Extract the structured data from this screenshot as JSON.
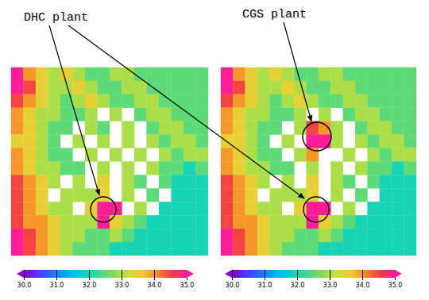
{
  "chart_data": [
    {
      "type": "heatmap",
      "annotations": [
        "DHC plant"
      ],
      "tick_labels": false,
      "color_range": [
        30,
        35
      ],
      "color_ticks": [
        30,
        31,
        32,
        33,
        34,
        35
      ],
      "cells": [
        [
          35,
          34,
          33.5,
          33,
          33.5,
          33,
          32.5,
          32.5,
          33,
          33,
          32.5,
          32.5,
          32.5,
          32.5,
          32.5,
          32.5
        ],
        [
          35,
          34.5,
          33.5,
          33,
          33,
          33.5,
          33,
          32.5,
          32.5,
          33,
          33,
          32.5,
          32.5,
          32.5,
          32.5,
          32.5
        ],
        [
          34.5,
          34,
          33.5,
          33,
          32.5,
          33,
          33.5,
          33,
          32.5,
          32.5,
          33,
          33,
          32.5,
          32.5,
          32.5,
          32.5
        ],
        [
          34,
          33.5,
          33,
          33,
          32.5,
          32.5,
          33,
          null,
          33,
          null,
          32.5,
          33,
          33,
          32.5,
          32.5,
          32.5
        ],
        [
          34,
          33.5,
          33,
          32.5,
          32.5,
          null,
          33,
          32.5,
          null,
          33,
          null,
          32.5,
          33,
          33,
          32.5,
          32.5
        ],
        [
          33.5,
          33.5,
          33,
          32.5,
          null,
          33,
          null,
          33,
          null,
          33,
          null,
          33,
          32.5,
          33,
          33,
          32.5
        ],
        [
          34,
          33.5,
          33,
          32.5,
          32.5,
          null,
          33,
          null,
          33,
          null,
          33,
          null,
          33,
          32.5,
          33,
          33
        ],
        [
          34,
          33.5,
          33,
          33,
          32.5,
          32.5,
          null,
          33,
          null,
          33,
          null,
          33,
          32.5,
          32.5,
          32,
          32.5
        ],
        [
          34.5,
          34,
          33.5,
          33,
          null,
          33,
          null,
          33.5,
          null,
          33,
          32.5,
          null,
          32.5,
          32,
          32,
          32
        ],
        [
          34.5,
          34,
          33.5,
          null,
          33,
          33,
          33,
          33.5,
          null,
          33,
          null,
          32.5,
          null,
          32,
          32,
          32
        ],
        [
          34.5,
          34,
          33.5,
          33,
          33,
          null,
          33.5,
          35,
          35,
          null,
          33,
          null,
          32,
          32,
          32,
          32
        ],
        [
          34.5,
          34,
          34,
          33.5,
          33,
          33,
          33,
          35,
          33.5,
          33,
          32.5,
          32,
          32,
          32,
          32,
          32
        ],
        [
          35,
          34.5,
          34,
          33.5,
          33,
          33,
          32.5,
          32.5,
          33,
          32.5,
          32,
          32,
          32,
          32,
          32,
          32
        ],
        [
          35,
          34.5,
          34,
          33.5,
          33,
          32.5,
          32.5,
          32.5,
          32,
          32,
          32,
          32,
          32,
          32,
          32,
          32
        ]
      ]
    },
    {
      "type": "heatmap",
      "annotations": [
        "CGS plant"
      ],
      "tick_labels": false,
      "color_range": [
        30,
        35
      ],
      "color_ticks": [
        30,
        31,
        32,
        33,
        34,
        35
      ],
      "cells": [
        [
          35,
          34,
          33.5,
          33,
          33.5,
          33,
          32.5,
          32.5,
          33,
          33,
          32.5,
          32.5,
          32.5,
          32.5,
          32.5,
          32.5
        ],
        [
          35,
          34.5,
          33.5,
          33,
          33,
          33.5,
          33,
          32.5,
          32.5,
          33,
          33,
          32.5,
          32.5,
          32.5,
          32.5,
          32.5
        ],
        [
          34.5,
          34,
          33.5,
          33,
          32.5,
          33,
          33.5,
          33,
          32.5,
          32.5,
          33,
          33,
          32.5,
          32.5,
          32.5,
          32.5
        ],
        [
          34,
          33.5,
          33,
          33,
          32.5,
          32.5,
          33,
          null,
          33,
          null,
          32.5,
          33,
          33,
          32.5,
          32.5,
          32.5
        ],
        [
          34,
          33.5,
          33,
          32.5,
          32.5,
          null,
          33,
          34.5,
          34,
          33,
          null,
          32.5,
          33,
          33,
          32.5,
          32.5
        ],
        [
          33.5,
          33.5,
          33,
          32.5,
          null,
          33,
          null,
          35,
          35,
          33,
          null,
          33,
          32.5,
          33,
          33,
          32.5
        ],
        [
          34,
          33.5,
          33,
          32.5,
          32.5,
          null,
          33,
          34,
          null,
          null,
          33,
          null,
          33,
          32.5,
          33,
          33
        ],
        [
          34,
          33.5,
          33,
          33,
          32.5,
          32.5,
          null,
          33,
          null,
          33,
          null,
          33,
          32.5,
          32.5,
          32,
          32.5
        ],
        [
          34.5,
          34,
          33.5,
          33,
          null,
          33,
          null,
          33.5,
          null,
          33,
          32.5,
          null,
          32.5,
          32,
          32,
          32
        ],
        [
          34.5,
          34,
          33.5,
          null,
          33,
          33,
          33,
          33.5,
          null,
          33,
          null,
          32.5,
          null,
          32,
          32,
          32
        ],
        [
          34.5,
          34,
          33.5,
          33,
          33,
          null,
          33.5,
          35,
          35,
          null,
          33,
          null,
          32,
          32,
          32,
          32
        ],
        [
          34.5,
          34,
          34,
          33.5,
          33,
          33,
          33,
          35,
          33.5,
          33,
          32.5,
          32,
          32,
          32,
          32,
          32
        ],
        [
          35,
          34.5,
          34,
          33.5,
          33,
          33,
          32.5,
          32.5,
          33,
          32.5,
          32,
          32,
          32,
          32,
          32,
          32
        ],
        [
          35,
          34.5,
          34,
          33.5,
          33,
          32.5,
          32.5,
          32.5,
          32,
          32,
          32,
          32,
          32,
          32,
          32,
          32
        ]
      ]
    }
  ]
}
